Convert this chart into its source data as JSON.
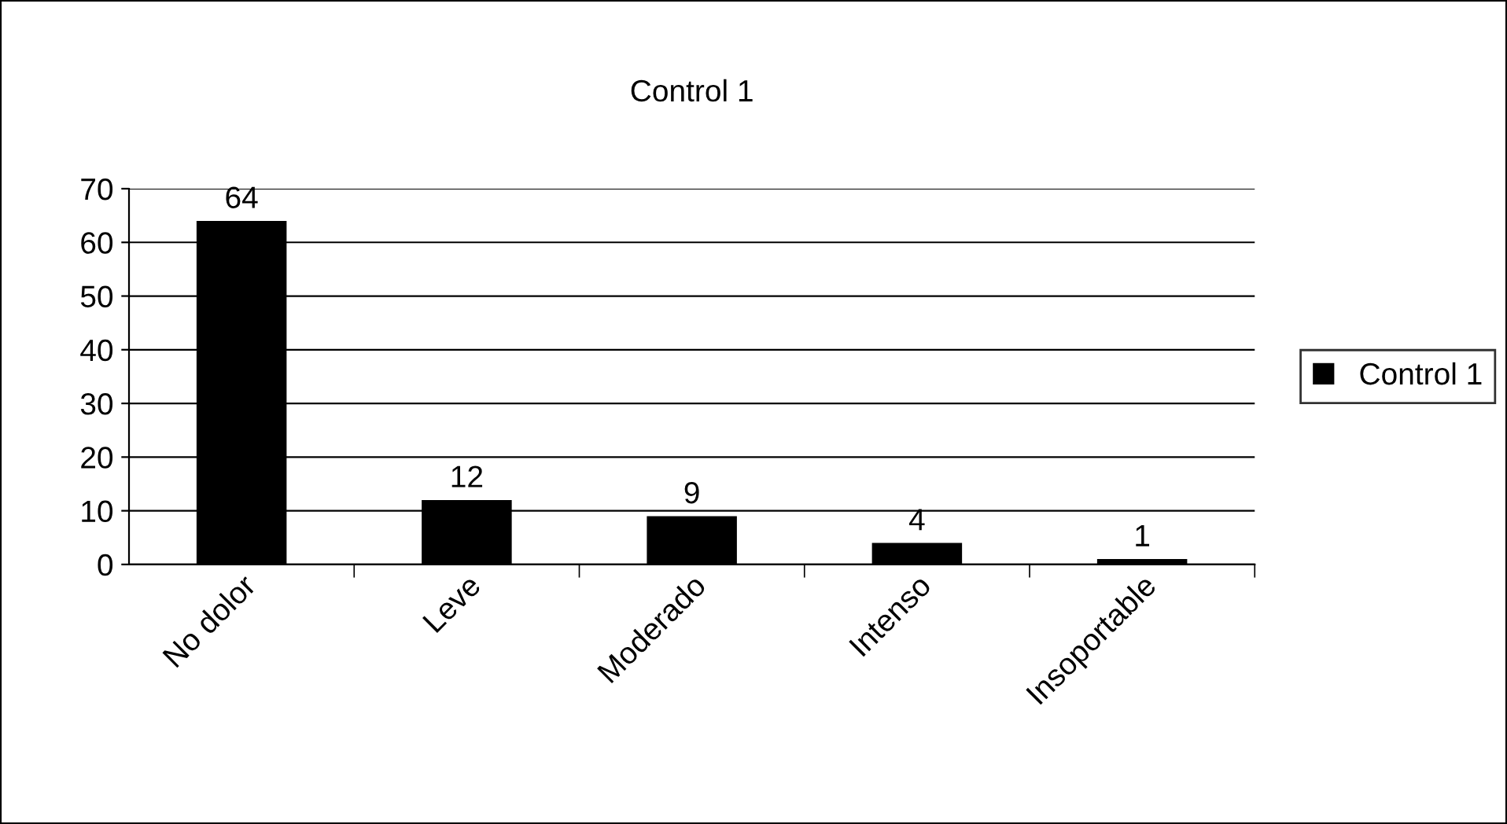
{
  "chart_data": {
    "type": "bar",
    "title": "Control 1",
    "categories": [
      "No dolor",
      "Leve",
      "Moderado",
      "Intenso",
      "Insoportable"
    ],
    "series": [
      {
        "name": "Control 1",
        "color": "#000000",
        "values": [
          64,
          12,
          9,
          4,
          1
        ]
      }
    ],
    "ylim": [
      0,
      70
    ],
    "yticks": [
      0,
      10,
      20,
      30,
      40,
      50,
      60,
      70
    ],
    "grid": "y",
    "legend": "right",
    "data_labels": true
  }
}
